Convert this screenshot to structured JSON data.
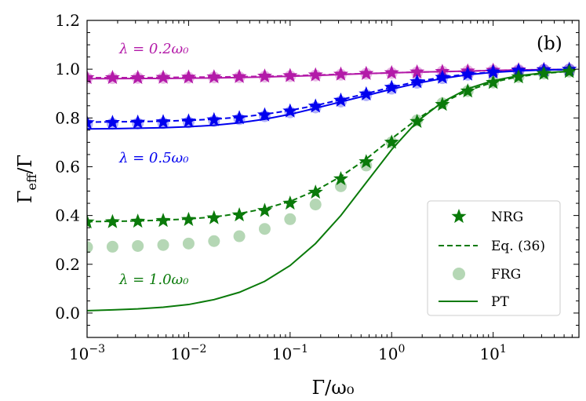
{
  "chart_data": {
    "type": "line",
    "panel_label": "(b)",
    "xscale": "log",
    "xlim": [
      0.001,
      70
    ],
    "ylim": [
      -0.1,
      1.2
    ],
    "x_tick_labels": [
      {
        "x": 0.001,
        "base": "10",
        "exp": "−3"
      },
      {
        "x": 0.01,
        "base": "10",
        "exp": "−2"
      },
      {
        "x": 0.1,
        "base": "10",
        "exp": "−1"
      },
      {
        "x": 1,
        "base": "10",
        "exp": "0"
      },
      {
        "x": 10,
        "base": "10",
        "exp": "1"
      }
    ],
    "y_ticks": [
      0.0,
      0.2,
      0.4,
      0.6,
      0.8,
      1.0,
      1.2
    ],
    "y_tick_labels": [
      "0.0",
      "0.2",
      "0.4",
      "0.6",
      "0.8",
      "1.0",
      "1.2"
    ],
    "xlabel": "Γ/ω₀",
    "ylabel": "Γeff/Γ",
    "legend": {
      "position": "lower-right",
      "entries": [
        {
          "label": "NRG",
          "style": "star"
        },
        {
          "label": "Eq. (36)",
          "style": "dashed"
        },
        {
          "label": "FRG",
          "style": "circle"
        },
        {
          "label": "PT",
          "style": "solid"
        }
      ]
    },
    "annotations": [
      {
        "text": "λ = 0.2ω₀",
        "color": "#b31aa8"
      },
      {
        "text": "λ = 0.5ω₀",
        "color": "#0000ee"
      },
      {
        "text": "λ = 1.0ω₀",
        "color": "#0a7a0a"
      }
    ],
    "x": [
      0.001,
      0.00178,
      0.00316,
      0.00562,
      0.01,
      0.0178,
      0.0316,
      0.0562,
      0.1,
      0.178,
      0.316,
      0.562,
      1.0,
      1.78,
      3.16,
      5.62,
      10,
      17.8,
      31.6,
      56.2
    ],
    "series": [
      {
        "lambda": "0.2",
        "color": "#b31aa8",
        "nrg": [
          0.965,
          0.965,
          0.965,
          0.966,
          0.967,
          0.968,
          0.969,
          0.971,
          0.973,
          0.976,
          0.979,
          0.982,
          0.985,
          0.988,
          0.99,
          0.992,
          0.995,
          0.997,
          0.998,
          0.999
        ],
        "frg": [
          0.963,
          0.963,
          0.964,
          0.964,
          0.965,
          0.966,
          0.967,
          0.969,
          0.971,
          0.974,
          0.977,
          0.981,
          0.984,
          0.987,
          0.99,
          0.992,
          0.995,
          0.997,
          0.998,
          0.999
        ],
        "eq36": [
          0.965,
          0.965,
          0.965,
          0.966,
          0.967,
          0.968,
          0.969,
          0.971,
          0.973,
          0.976,
          0.979,
          0.982,
          0.985,
          0.988,
          0.99,
          0.992,
          0.995,
          0.997,
          0.998,
          0.999
        ],
        "pt": [
          0.961,
          0.961,
          0.962,
          0.962,
          0.963,
          0.964,
          0.966,
          0.968,
          0.971,
          0.974,
          0.978,
          0.982,
          0.985,
          0.988,
          0.99,
          0.992,
          0.995,
          0.997,
          0.998,
          0.999
        ]
      },
      {
        "lambda": "0.5",
        "color": "#0000ee",
        "nrg": [
          0.78,
          0.781,
          0.782,
          0.784,
          0.787,
          0.792,
          0.8,
          0.812,
          0.828,
          0.848,
          0.872,
          0.898,
          0.925,
          0.948,
          0.966,
          0.979,
          0.988,
          0.994,
          0.997,
          0.999
        ],
        "frg": [
          0.775,
          0.776,
          0.777,
          0.779,
          0.782,
          0.787,
          0.795,
          0.807,
          0.823,
          0.843,
          0.867,
          0.893,
          0.92,
          0.944,
          0.963,
          0.977,
          0.987,
          0.993,
          0.997,
          0.999
        ],
        "eq36": [
          0.783,
          0.784,
          0.785,
          0.787,
          0.79,
          0.795,
          0.803,
          0.815,
          0.831,
          0.851,
          0.875,
          0.9,
          0.926,
          0.949,
          0.967,
          0.98,
          0.988,
          0.994,
          0.997,
          0.999
        ],
        "pt": [
          0.755,
          0.756,
          0.758,
          0.76,
          0.764,
          0.77,
          0.78,
          0.795,
          0.815,
          0.84,
          0.866,
          0.892,
          0.918,
          0.942,
          0.962,
          0.977,
          0.987,
          0.993,
          0.997,
          0.999
        ]
      },
      {
        "lambda": "1.0",
        "color": "#0a7a0a",
        "nrg": [
          0.373,
          0.374,
          0.376,
          0.379,
          0.383,
          0.39,
          0.402,
          0.42,
          0.45,
          0.495,
          0.55,
          0.62,
          0.7,
          0.785,
          0.855,
          0.91,
          0.945,
          0.968,
          0.982,
          0.99
        ],
        "frg": [
          0.27,
          0.272,
          0.275,
          0.279,
          0.285,
          0.295,
          0.315,
          0.345,
          0.385,
          0.445,
          0.52,
          0.605,
          0.7,
          0.79,
          0.86,
          0.91,
          0.945,
          0.968,
          0.982,
          0.99
        ],
        "eq36": [
          0.375,
          0.376,
          0.378,
          0.381,
          0.386,
          0.394,
          0.408,
          0.428,
          0.458,
          0.502,
          0.56,
          0.632,
          0.715,
          0.795,
          0.862,
          0.912,
          0.947,
          0.969,
          0.983,
          0.991
        ],
        "pt": [
          0.01,
          0.013,
          0.017,
          0.024,
          0.035,
          0.055,
          0.085,
          0.13,
          0.195,
          0.285,
          0.4,
          0.535,
          0.67,
          0.785,
          0.865,
          0.92,
          0.953,
          0.973,
          0.985,
          0.992
        ]
      }
    ]
  }
}
